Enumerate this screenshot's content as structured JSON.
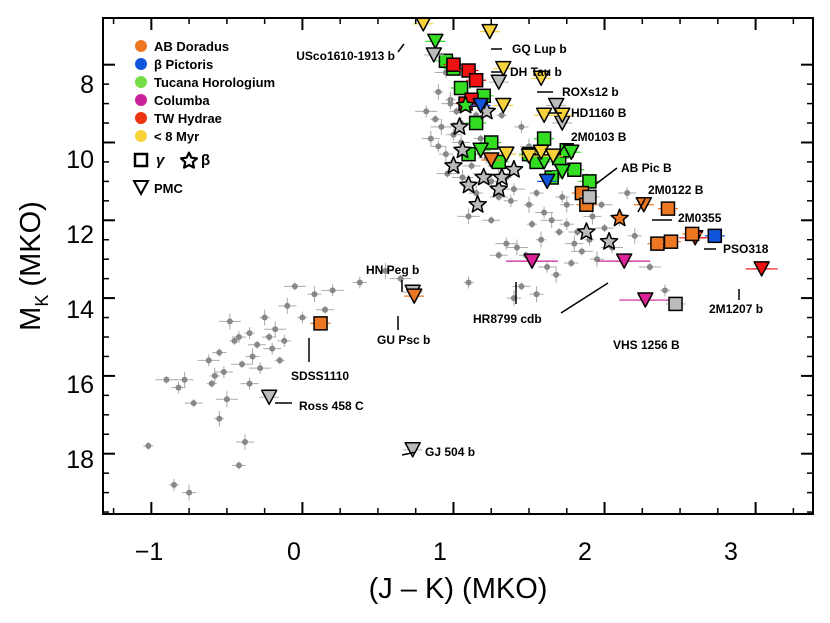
{
  "chart_data": {
    "type": "scatter",
    "xlabel": "(J – K) (MKO)",
    "ylabel_main": "M",
    "ylabel_sub": "K",
    "ylabel_suffix": " (MKO)",
    "xlim": [
      -1.32,
      3.38
    ],
    "ylim": [
      19.55,
      6.8
    ],
    "xticks": [
      -1,
      0,
      1,
      2,
      3
    ],
    "xtick_labels": [
      "−1",
      "0",
      "1",
      "2",
      "3"
    ],
    "yticks": [
      8,
      10,
      12,
      14,
      16,
      18
    ],
    "ytick_labels": [
      "8",
      "10",
      "12",
      "14",
      "16",
      "18"
    ],
    "legend": {
      "colors": [
        {
          "label": "AB Doradus",
          "color": "#ee7722"
        },
        {
          "label": "β Pictoris",
          "color": "#1155dd"
        },
        {
          "label": "Tucana Horologium",
          "color": "#77dd44"
        },
        {
          "label": "Columba",
          "color": "#cc2299"
        },
        {
          "label": "TW Hydrae",
          "color": "#ee3311"
        },
        {
          "label": "< 8 Myr",
          "color": "#f7d23a"
        }
      ],
      "gamma_label": "γ",
      "beta_label": "β",
      "pmc_label": "PMC"
    },
    "field": [
      [
        -1.02,
        17.8
      ],
      [
        -0.82,
        16.3
      ],
      [
        -0.78,
        16.1
      ],
      [
        -0.9,
        16.1
      ],
      [
        -0.85,
        18.8
      ],
      [
        -0.75,
        19.0
      ],
      [
        -0.72,
        16.7
      ],
      [
        -0.62,
        15.6
      ],
      [
        -0.58,
        16.0
      ],
      [
        -0.55,
        15.4
      ],
      [
        -0.52,
        15.9
      ],
      [
        -0.48,
        14.6
      ],
      [
        -0.45,
        15.1
      ],
      [
        -0.42,
        15.0
      ],
      [
        -0.38,
        17.7
      ],
      [
        -0.4,
        15.7
      ],
      [
        -0.35,
        14.9
      ],
      [
        -0.33,
        15.5
      ],
      [
        -0.3,
        15.2
      ],
      [
        -0.28,
        15.8
      ],
      [
        -0.25,
        14.5
      ],
      [
        -0.22,
        15.0
      ],
      [
        -0.2,
        15.3
      ],
      [
        -0.18,
        14.8
      ],
      [
        -0.15,
        15.6
      ],
      [
        -0.12,
        15.1
      ],
      [
        -0.1,
        14.2
      ],
      [
        -0.05,
        13.7
      ],
      [
        0.0,
        14.5
      ],
      [
        0.08,
        13.9
      ],
      [
        0.15,
        14.3
      ],
      [
        0.2,
        13.8
      ],
      [
        -0.55,
        17.1
      ],
      [
        -0.42,
        18.3
      ],
      [
        -0.35,
        16.2
      ],
      [
        -0.5,
        16.6
      ],
      [
        -0.6,
        16.2
      ],
      [
        0.38,
        13.6
      ],
      [
        0.55,
        13.3
      ],
      [
        0.65,
        13.5
      ],
      [
        1.1,
        13.6
      ],
      [
        1.4,
        14.0
      ],
      [
        1.45,
        13.7
      ],
      [
        0.95,
        8.2
      ],
      [
        0.98,
        8.9
      ],
      [
        1.02,
        9.2
      ],
      [
        1.05,
        9.5
      ],
      [
        0.92,
        9.6
      ],
      [
        0.88,
        9.4
      ],
      [
        1.0,
        9.8
      ],
      [
        1.05,
        10.0
      ],
      [
        1.1,
        10.2
      ],
      [
        1.0,
        10.5
      ],
      [
        0.95,
        10.3
      ],
      [
        1.12,
        10.6
      ],
      [
        1.2,
        10.8
      ],
      [
        1.25,
        11.0
      ],
      [
        1.18,
        9.9
      ],
      [
        1.22,
        10.4
      ],
      [
        1.3,
        10.6
      ],
      [
        1.35,
        10.9
      ],
      [
        0.9,
        10.1
      ],
      [
        0.85,
        9.9
      ],
      [
        0.96,
        10.8
      ],
      [
        1.08,
        11.1
      ],
      [
        1.15,
        11.3
      ],
      [
        1.3,
        11.4
      ],
      [
        1.4,
        11.2
      ],
      [
        1.5,
        11.6
      ],
      [
        1.55,
        11.3
      ],
      [
        1.6,
        11.8
      ],
      [
        1.65,
        12.0
      ],
      [
        1.7,
        12.3
      ],
      [
        1.75,
        12.1
      ],
      [
        1.8,
        12.6
      ],
      [
        1.85,
        12.8
      ],
      [
        1.9,
        12.5
      ],
      [
        1.95,
        13.0
      ],
      [
        2.0,
        12.2
      ],
      [
        2.05,
        12.7
      ],
      [
        1.58,
        12.5
      ],
      [
        1.48,
        12.9
      ],
      [
        1.62,
        13.2
      ],
      [
        1.42,
        12.7
      ],
      [
        1.52,
        12.1
      ],
      [
        1.72,
        11.4
      ],
      [
        1.88,
        11.0
      ],
      [
        1.98,
        11.6
      ],
      [
        2.1,
        12.0
      ],
      [
        2.2,
        12.4
      ],
      [
        1.25,
        12.0
      ],
      [
        1.35,
        12.6
      ],
      [
        1.68,
        13.4
      ],
      [
        1.78,
        13.1
      ],
      [
        2.15,
        11.3
      ],
      [
        1.1,
        11.9
      ],
      [
        1.32,
        9.3
      ],
      [
        1.45,
        9.6
      ],
      [
        1.5,
        10.1
      ],
      [
        1.6,
        10.4
      ],
      [
        1.7,
        10.8
      ],
      [
        1.75,
        11.6
      ],
      [
        1.82,
        12.3
      ],
      [
        0.82,
        9.2
      ],
      [
        0.9,
        8.7
      ],
      [
        1.15,
        9.3
      ],
      [
        0.98,
        9.0
      ],
      [
        1.06,
        10.9
      ],
      [
        1.4,
        10.7
      ],
      [
        1.38,
        11.5
      ],
      [
        1.92,
        11.9
      ],
      [
        2.3,
        13.2
      ],
      [
        2.4,
        13.8
      ],
      [
        1.55,
        13.9
      ],
      [
        1.3,
        12.9
      ]
    ],
    "gray_triangles": [
      [
        0.87,
        7.75
      ],
      [
        1.68,
        9.05
      ],
      [
        1.3,
        8.45
      ],
      [
        1.72,
        9.5
      ],
      [
        0.73,
        13.85
      ],
      [
        -0.22,
        16.55
      ],
      [
        0.73,
        17.9
      ]
    ],
    "green_squares": [
      [
        0.95,
        7.9
      ],
      [
        1.0,
        8.1
      ],
      [
        1.05,
        8.6
      ],
      [
        1.2,
        8.8
      ],
      [
        1.15,
        9.5
      ],
      [
        1.25,
        10.0
      ],
      [
        1.1,
        10.3
      ],
      [
        1.3,
        10.5
      ],
      [
        1.5,
        10.3
      ],
      [
        1.6,
        9.9
      ],
      [
        1.7,
        10.4
      ],
      [
        1.8,
        10.7
      ],
      [
        1.65,
        10.9
      ],
      [
        1.55,
        10.5
      ],
      [
        1.75,
        10.2
      ],
      [
        1.9,
        11.0
      ]
    ],
    "green_triangles": [
      [
        0.88,
        7.4
      ],
      [
        1.18,
        10.2
      ],
      [
        1.6,
        10.5
      ],
      [
        1.78,
        10.25
      ],
      [
        1.72,
        10.75
      ]
    ],
    "red_squares": [
      [
        1.0,
        8.0
      ],
      [
        1.1,
        8.15
      ],
      [
        1.15,
        8.4
      ],
      [
        1.08,
        9.0
      ],
      [
        1.12,
        8.9
      ]
    ],
    "orange_squares": [
      [
        1.85,
        11.3
      ],
      [
        1.88,
        11.6
      ],
      [
        2.42,
        11.7
      ],
      [
        2.35,
        12.6
      ],
      [
        2.44,
        12.55
      ],
      [
        2.58,
        12.35
      ],
      [
        0.12,
        14.65
      ]
    ],
    "gray_squares": [
      [
        1.9,
        11.4
      ],
      [
        2.47,
        14.15
      ]
    ],
    "blue_squares": [
      [
        2.73,
        12.4
      ]
    ],
    "yellow_triangles": [
      [
        0.8,
        6.95
      ],
      [
        1.24,
        7.15
      ],
      [
        1.33,
        8.1
      ],
      [
        1.58,
        8.35
      ],
      [
        1.6,
        9.3
      ],
      [
        1.72,
        9.3
      ],
      [
        1.33,
        9.05
      ],
      [
        1.35,
        10.3
      ],
      [
        1.5,
        10.35
      ],
      [
        1.58,
        10.25
      ],
      [
        1.66,
        10.35
      ]
    ],
    "orange_triangles": [
      [
        0.74,
        13.95
      ],
      [
        2.26,
        11.6
      ],
      [
        1.25,
        10.45
      ]
    ],
    "magenta_triangles": [
      [
        1.52,
        13.05
      ],
      [
        2.13,
        13.05
      ],
      [
        2.27,
        14.05
      ]
    ],
    "red_triangles": [
      [
        3.04,
        13.25
      ],
      [
        2.6,
        12.45
      ]
    ],
    "blue_triangles": [
      [
        1.62,
        11.0
      ],
      [
        1.18,
        9.05
      ]
    ],
    "stars_gray": [
      [
        1.0,
        10.6
      ],
      [
        1.1,
        11.1
      ],
      [
        1.2,
        10.9
      ],
      [
        1.4,
        10.7
      ],
      [
        1.3,
        11.2
      ],
      [
        1.04,
        9.6
      ],
      [
        1.22,
        9.2
      ],
      [
        1.06,
        10.2
      ],
      [
        1.16,
        11.6
      ],
      [
        1.88,
        12.3
      ],
      [
        2.03,
        12.55
      ],
      [
        1.32,
        10.9
      ]
    ],
    "stars_orange": [
      [
        2.1,
        11.95
      ]
    ],
    "stars_green": [
      [
        1.08,
        9.05
      ]
    ],
    "annotations": [
      {
        "text": "USco1610-1913 b"
      },
      {
        "text": "GQ Lup b"
      },
      {
        "text": "DH Tau b"
      },
      {
        "text": "ROXs12 b"
      },
      {
        "text": "HD1160 B"
      },
      {
        "text": "2M0103 B"
      },
      {
        "text": "AB Pic B"
      },
      {
        "text": "2M0122 B"
      },
      {
        "text": "2M0355"
      },
      {
        "text": "PSO318"
      },
      {
        "text": "2M1207 b"
      },
      {
        "text": "HR8799 cdb"
      },
      {
        "text": "VHS 1256 B"
      },
      {
        "text": "HN Peg b"
      },
      {
        "text": "GU Psc b"
      },
      {
        "text": "SDSS1110"
      },
      {
        "text": "Ross 458 C"
      },
      {
        "text": "GJ 504 b"
      }
    ]
  }
}
